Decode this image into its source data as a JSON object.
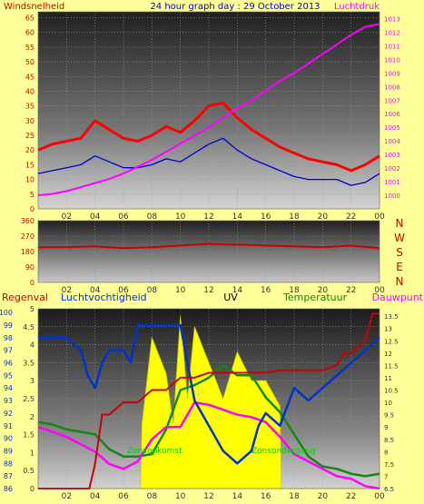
{
  "title": "24 hour graph day : 29 October 2013",
  "panels": {
    "wind": {
      "label_left": "Windsnelheid",
      "label_right": "Luchtdruk"
    },
    "direction": {
      "compass": [
        "N",
        "W",
        "S",
        "E",
        "N"
      ]
    },
    "bottom": {
      "labels": [
        "Regenval",
        "Luchtvochtigheid",
        "UV",
        "Temperatuur",
        "Dauwpunt"
      ],
      "annotations": [
        "Zonsopkomst",
        "Zonsondergang"
      ]
    }
  },
  "colors": {
    "wind": "#ff0000",
    "wind_avg": "#0000cc",
    "pressure": "#ff00ff",
    "direction": "#cc0000",
    "rain": "#cc0000",
    "humidity": "#0033cc",
    "uv": "#ffff00",
    "temperature": "#118811",
    "dewpoint": "#ff00ff",
    "sun_text": "#00cc00"
  },
  "chart_data": [
    {
      "type": "line",
      "title": "24 hour graph day : 29 October 2013",
      "x_ticks": [
        "02",
        "04",
        "06",
        "08",
        "10",
        "12",
        "14",
        "16",
        "18",
        "20",
        "22",
        "00"
      ],
      "xlim": [
        0,
        24
      ],
      "y_left_label": "Windsnelheid",
      "y_left_ticks": [
        0,
        5,
        10,
        15,
        20,
        25,
        30,
        35,
        40,
        45,
        50,
        55,
        60,
        65
      ],
      "y_left_lim": [
        0,
        67
      ],
      "y_right_label": "Luchtdruk",
      "y_right_ticks": [
        1000,
        1001,
        1002,
        1003,
        1004,
        1005,
        1006,
        1007,
        1008,
        1009,
        1010,
        1011,
        1012,
        1013
      ],
      "y_right_lim": [
        999,
        1013.5
      ],
      "series": [
        {
          "name": "Windsnelheid",
          "axis": "left",
          "x": [
            0,
            1,
            2,
            3,
            4,
            5,
            6,
            7,
            8,
            9,
            10,
            11,
            12,
            13,
            14,
            15,
            16,
            17,
            18,
            19,
            20,
            21,
            22,
            23,
            24
          ],
          "y": [
            20,
            22,
            23,
            24,
            30,
            27,
            24,
            23,
            25,
            28,
            26,
            30,
            35,
            36,
            31,
            27,
            24,
            21,
            19,
            17,
            16,
            15,
            13,
            15,
            18
          ]
        },
        {
          "name": "Windsnelheid gemiddeld",
          "axis": "left",
          "x": [
            0,
            1,
            2,
            3,
            4,
            5,
            6,
            7,
            8,
            9,
            10,
            11,
            12,
            13,
            14,
            15,
            16,
            17,
            18,
            19,
            20,
            21,
            22,
            23,
            24
          ],
          "y": [
            12,
            13,
            14,
            15,
            18,
            16,
            14,
            14,
            15,
            17,
            16,
            19,
            22,
            24,
            20,
            17,
            15,
            13,
            11,
            10,
            10,
            10,
            8,
            9,
            12
          ]
        },
        {
          "name": "Luchtdruk",
          "axis": "right",
          "x": [
            0,
            1,
            2,
            3,
            4,
            5,
            6,
            7,
            8,
            9,
            10,
            11,
            12,
            13,
            14,
            15,
            16,
            17,
            18,
            19,
            20,
            21,
            22,
            23,
            24
          ],
          "y": [
            1000,
            1000.1,
            1000.3,
            1000.6,
            1000.9,
            1001.2,
            1001.6,
            1002.1,
            1002.6,
            1003.2,
            1003.8,
            1004.4,
            1005,
            1005.7,
            1006.4,
            1007,
            1007.7,
            1008.4,
            1009,
            1009.7,
            1010.4,
            1011.1,
            1011.8,
            1012.4,
            1012.6
          ]
        }
      ]
    },
    {
      "type": "line",
      "x_ticks": [
        "02",
        "04",
        "06",
        "08",
        "10",
        "12",
        "14",
        "16",
        "18",
        "20",
        "22",
        "00"
      ],
      "xlim": [
        0,
        24
      ],
      "y_ticks": [
        0,
        90,
        180,
        270,
        360
      ],
      "ylim": [
        0,
        360
      ],
      "compass_labels": [
        "N",
        "W",
        "S",
        "E",
        "N"
      ],
      "series": [
        {
          "name": "Windrichting",
          "x": [
            0,
            2,
            4,
            6,
            8,
            10,
            12,
            14,
            16,
            18,
            20,
            22,
            24
          ],
          "y": [
            205,
            205,
            210,
            200,
            205,
            215,
            225,
            220,
            215,
            210,
            205,
            215,
            200
          ]
        }
      ]
    },
    {
      "type": "line",
      "x_ticks": [
        "02",
        "04",
        "06",
        "08",
        "10",
        "12",
        "14",
        "16",
        "18",
        "20",
        "22",
        "00"
      ],
      "xlim": [
        0,
        24
      ],
      "y_left_ticks": [
        86,
        87,
        88,
        89,
        90,
        91,
        92,
        93,
        94,
        95,
        96,
        97,
        98,
        99,
        100
      ],
      "y_left_lim": [
        86,
        100.3
      ],
      "y_mid_ticks": [
        0,
        0.5,
        1,
        1.5,
        2,
        2.5,
        3,
        3.5,
        4,
        4.5,
        5
      ],
      "y_mid_lim": [
        0,
        5
      ],
      "y_right_ticks": [
        6.5,
        7,
        7.5,
        8,
        8.5,
        9,
        9.5,
        10,
        10.5,
        11,
        11.5,
        12,
        12.5,
        13,
        13.5
      ],
      "y_right_lim": [
        6.5,
        13.8
      ],
      "series": [
        {
          "name": "Regenval",
          "axis": "right",
          "x": [
            0,
            2,
            3.6,
            4,
            4.5,
            5,
            6,
            7,
            8,
            9,
            10,
            11,
            12,
            13,
            14,
            15,
            16,
            17,
            18,
            19,
            20,
            21,
            21.5,
            22,
            23,
            23.5,
            24
          ],
          "y": [
            6.5,
            6.5,
            6.5,
            7.5,
            9.5,
            9.5,
            10,
            10,
            10.5,
            10.5,
            11,
            11,
            11.2,
            11.2,
            11.2,
            11.2,
            11.2,
            11.3,
            11.3,
            11.3,
            11.3,
            11.5,
            12,
            12,
            12.5,
            13.6,
            13.6
          ]
        },
        {
          "name": "Luchtvochtigheid",
          "axis": "left",
          "x": [
            0,
            1,
            2,
            3,
            3.5,
            4,
            4.5,
            5,
            6,
            6.5,
            7,
            8,
            9,
            10,
            11,
            12,
            13,
            14,
            15,
            15.5,
            16,
            17,
            18,
            19,
            20,
            21,
            22,
            23,
            24
          ],
          "y": [
            98,
            98,
            98,
            97,
            95,
            94,
            96,
            97,
            97,
            96,
            99,
            99,
            99,
            99,
            93,
            91,
            89,
            88,
            89,
            91,
            92,
            91,
            94,
            93,
            94,
            95,
            96,
            97,
            98
          ]
        },
        {
          "name": "UV",
          "axis": "mid",
          "x": [
            0,
            7.2,
            7.3,
            8,
            9,
            9.5,
            10,
            10.5,
            11,
            12,
            13,
            14,
            15,
            16,
            17,
            17.1,
            24
          ],
          "y": [
            0,
            0,
            1.8,
            4.2,
            3.2,
            1.8,
            4.8,
            2.5,
            4.5,
            3.5,
            2.5,
            3.8,
            3,
            3,
            2.3,
            0,
            0
          ]
        },
        {
          "name": "Temperatuur",
          "axis": "right",
          "x": [
            0,
            1,
            2,
            3,
            4,
            5,
            6,
            7,
            8,
            9,
            10,
            11,
            12,
            13,
            14,
            15,
            16,
            17,
            18,
            19,
            20,
            21,
            22,
            23,
            24
          ],
          "y": [
            9.2,
            9.1,
            8.9,
            8.8,
            8.7,
            8.1,
            7.8,
            7.8,
            7.9,
            8.9,
            10.5,
            10.7,
            11,
            11.5,
            11.1,
            11.1,
            10.2,
            9.6,
            8.7,
            7.8,
            7.4,
            7.3,
            7.1,
            7,
            7.1
          ]
        },
        {
          "name": "Dauwpunt",
          "axis": "right",
          "x": [
            0,
            1,
            2,
            3,
            4,
            5,
            6,
            7,
            8,
            9,
            10,
            11,
            12,
            13,
            14,
            15,
            16,
            17,
            18,
            19,
            20,
            21,
            22,
            23,
            24
          ],
          "y": [
            9,
            8.8,
            8.6,
            8.3,
            8,
            7.5,
            7.3,
            7.6,
            8.5,
            9,
            9,
            10,
            9.9,
            9.7,
            9.5,
            9.4,
            9.2,
            8.6,
            7.9,
            7.6,
            7.3,
            7,
            6.9,
            6.6,
            6.5
          ]
        }
      ]
    }
  ]
}
